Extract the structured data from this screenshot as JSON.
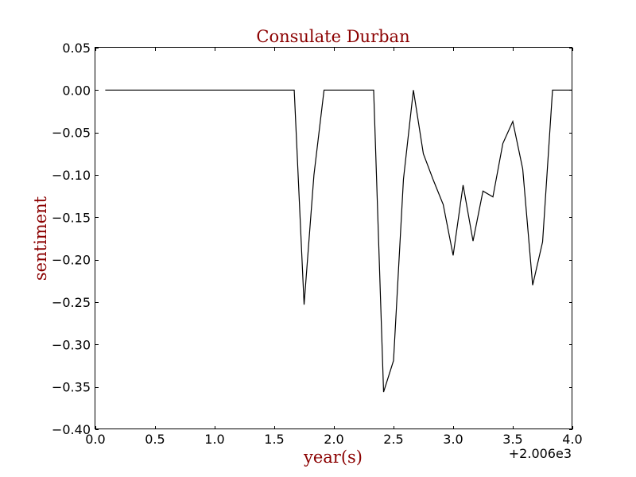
{
  "chart_data": {
    "type": "line",
    "title": "Consulate Durban",
    "xlabel": "year(s)",
    "ylabel": "sentiment",
    "offset_text": "+2.006e3",
    "xlim": [
      0.0,
      4.0
    ],
    "ylim": [
      -0.4,
      0.05
    ],
    "xticks": [
      0.0,
      0.5,
      1.0,
      1.5,
      2.0,
      2.5,
      3.0,
      3.5,
      4.0
    ],
    "xtick_labels": [
      "0.0",
      "0.5",
      "1.0",
      "1.5",
      "2.0",
      "2.5",
      "3.0",
      "3.5",
      "4.0"
    ],
    "yticks": [
      0.05,
      0.0,
      -0.05,
      -0.1,
      -0.15,
      -0.2,
      -0.25,
      -0.3,
      -0.35,
      -0.4
    ],
    "ytick_labels": [
      "0.05",
      "0.00",
      "−0.05",
      "−0.10",
      "−0.15",
      "−0.20",
      "−0.25",
      "−0.30",
      "−0.35",
      "−0.40"
    ],
    "grid": false,
    "colors": {
      "title": "#8b0000",
      "labels": "#8b0000",
      "line": "#000000"
    },
    "series": [
      {
        "x": [
          0.083,
          0.167,
          0.25,
          0.333,
          0.417,
          0.5,
          0.583,
          0.667,
          0.75,
          0.833,
          0.917,
          1.0,
          1.083,
          1.167,
          1.25,
          1.333,
          1.417,
          1.5,
          1.583,
          1.667,
          1.75,
          1.833,
          1.917,
          2.0,
          2.083,
          2.167,
          2.25,
          2.333,
          2.417,
          2.5,
          2.583,
          2.667,
          2.75,
          2.833,
          2.917,
          3.0,
          3.083,
          3.167,
          3.25,
          3.333,
          3.417,
          3.5,
          3.583,
          3.667,
          3.75,
          3.833,
          3.917,
          4.0
        ],
        "y": [
          0,
          0,
          0,
          0,
          0,
          0,
          0,
          0,
          0,
          0,
          0,
          0,
          0,
          0,
          0,
          0,
          0,
          0,
          0,
          0,
          -0.253,
          -0.1,
          0,
          0,
          0,
          0,
          0,
          0,
          -0.356,
          -0.319,
          -0.105,
          0,
          -0.075,
          -0.106,
          -0.135,
          -0.195,
          -0.112,
          -0.178,
          -0.119,
          -0.126,
          -0.063,
          -0.037,
          -0.093,
          -0.23,
          -0.179,
          0,
          0,
          0
        ]
      }
    ]
  }
}
